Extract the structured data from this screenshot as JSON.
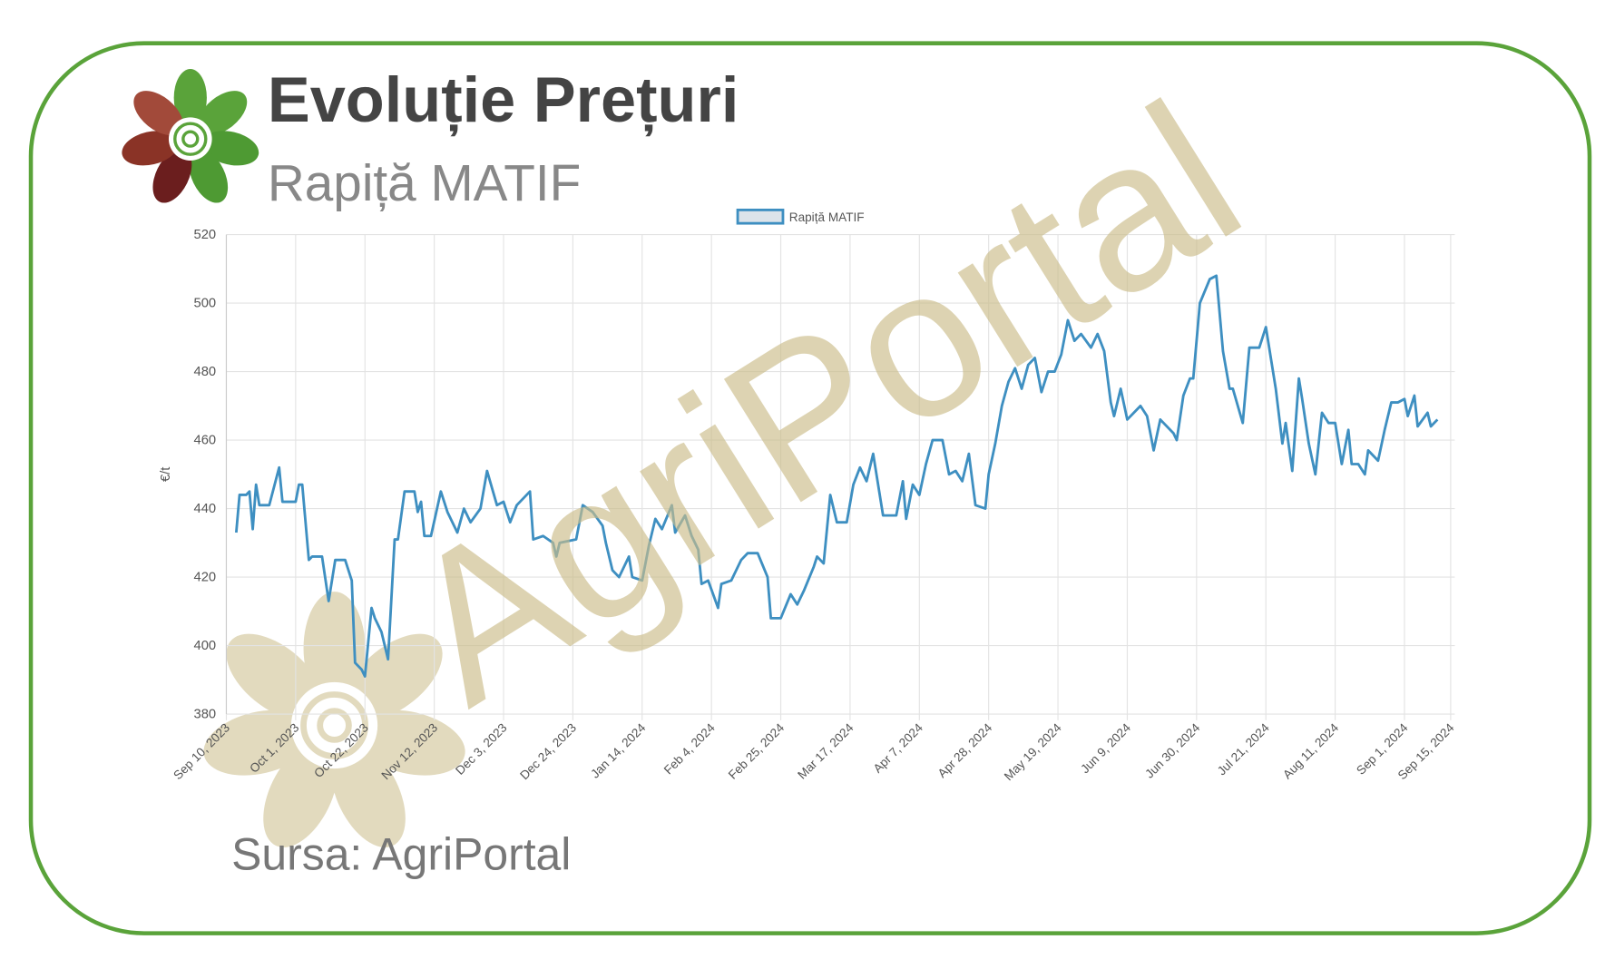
{
  "chart_data": {
    "type": "line",
    "title": "Evoluție Prețuri",
    "subtitle": "Rapiță MATIF",
    "source": "Sursa: AgriPortal",
    "watermark": "AgriPortal",
    "y_label": "€/t",
    "x": [
      "2023-09-13",
      "2023-09-14",
      "2023-09-16",
      "2023-09-17",
      "2023-09-18",
      "2023-09-19",
      "2023-09-20",
      "2023-09-23",
      "2023-09-26",
      "2023-09-27",
      "2023-10-01",
      "2023-10-02",
      "2023-10-03",
      "2023-10-05",
      "2023-10-06",
      "2023-10-09",
      "2023-10-11",
      "2023-10-12",
      "2023-10-13",
      "2023-10-16",
      "2023-10-18",
      "2023-10-19",
      "2023-10-21",
      "2023-10-22",
      "2023-10-24",
      "2023-10-25",
      "2023-10-27",
      "2023-10-29",
      "2023-10-31",
      "2023-11-01",
      "2023-11-03",
      "2023-11-06",
      "2023-11-07",
      "2023-11-08",
      "2023-11-09",
      "2023-11-11",
      "2023-11-14",
      "2023-11-16",
      "2023-11-19",
      "2023-11-21",
      "2023-11-23",
      "2023-11-26",
      "2023-11-28",
      "2023-12-01",
      "2023-12-03",
      "2023-12-05",
      "2023-12-07",
      "2023-12-11",
      "2023-12-12",
      "2023-12-15",
      "2023-12-18",
      "2023-12-19",
      "2023-12-20",
      "2023-12-25",
      "2023-12-27",
      "2023-12-30",
      "2024-01-02",
      "2024-01-03",
      "2024-01-05",
      "2024-01-07",
      "2024-01-10",
      "2024-01-11",
      "2024-01-14",
      "2024-01-16",
      "2024-01-18",
      "2024-01-20",
      "2024-01-23",
      "2024-01-24",
      "2024-01-27",
      "2024-01-29",
      "2024-01-31",
      "2024-02-01",
      "2024-02-03",
      "2024-02-06",
      "2024-02-07",
      "2024-02-10",
      "2024-02-13",
      "2024-02-15",
      "2024-02-18",
      "2024-02-21",
      "2024-02-22",
      "2024-02-25",
      "2024-02-28",
      "2024-03-01",
      "2024-03-03",
      "2024-03-06",
      "2024-03-07",
      "2024-03-09",
      "2024-03-11",
      "2024-03-13",
      "2024-03-16",
      "2024-03-18",
      "2024-03-20",
      "2024-03-22",
      "2024-03-24",
      "2024-03-27",
      "2024-03-31",
      "2024-04-02",
      "2024-04-03",
      "2024-04-05",
      "2024-04-07",
      "2024-04-09",
      "2024-04-11",
      "2024-04-14",
      "2024-04-16",
      "2024-04-18",
      "2024-04-20",
      "2024-04-22",
      "2024-04-24",
      "2024-04-27",
      "2024-04-28",
      "2024-04-30",
      "2024-05-02",
      "2024-05-04",
      "2024-05-06",
      "2024-05-08",
      "2024-05-10",
      "2024-05-12",
      "2024-05-14",
      "2024-05-16",
      "2024-05-18",
      "2024-05-20",
      "2024-05-22",
      "2024-05-24",
      "2024-05-26",
      "2024-05-29",
      "2024-05-31",
      "2024-06-02",
      "2024-06-04",
      "2024-06-05",
      "2024-06-07",
      "2024-06-09",
      "2024-06-11",
      "2024-06-13",
      "2024-06-15",
      "2024-06-17",
      "2024-06-19",
      "2024-06-23",
      "2024-06-24",
      "2024-06-26",
      "2024-06-28",
      "2024-06-29",
      "2024-07-01",
      "2024-07-04",
      "2024-07-06",
      "2024-07-08",
      "2024-07-10",
      "2024-07-11",
      "2024-07-14",
      "2024-07-16",
      "2024-07-19",
      "2024-07-21",
      "2024-07-24",
      "2024-07-26",
      "2024-07-27",
      "2024-07-29",
      "2024-07-31",
      "2024-08-01",
      "2024-08-03",
      "2024-08-05",
      "2024-08-07",
      "2024-08-09",
      "2024-08-11",
      "2024-08-13",
      "2024-08-15",
      "2024-08-16",
      "2024-08-18",
      "2024-08-20",
      "2024-08-21",
      "2024-08-24",
      "2024-08-26",
      "2024-08-28",
      "2024-08-30",
      "2024-09-01",
      "2024-09-02",
      "2024-09-04",
      "2024-09-05",
      "2024-09-08",
      "2024-09-09",
      "2024-09-11"
    ],
    "series": [
      {
        "name": "Rapiță MATIF",
        "color": "#3e8fc1",
        "values": [
          433,
          444,
          444,
          445,
          434,
          447,
          441,
          441,
          452,
          442,
          442,
          447,
          447,
          425,
          426,
          426,
          413,
          419,
          425,
          425,
          419,
          395,
          393,
          391,
          411,
          408,
          404,
          396,
          431,
          431,
          445,
          445,
          439,
          442,
          432,
          432,
          445,
          439,
          433,
          440,
          436,
          440,
          451,
          441,
          442,
          436,
          441,
          445,
          431,
          432,
          430,
          426,
          430,
          431,
          441,
          439,
          435,
          430,
          422,
          420,
          426,
          420,
          419,
          429,
          437,
          434,
          441,
          433,
          438,
          432,
          428,
          418,
          419,
          411,
          418,
          419,
          425,
          427,
          427,
          420,
          408,
          408,
          415,
          412,
          416,
          423,
          426,
          424,
          444,
          436,
          436,
          447,
          452,
          448,
          456,
          438,
          438,
          448,
          437,
          447,
          444,
          453,
          460,
          460,
          450,
          451,
          448,
          456,
          441,
          440,
          450,
          459,
          470,
          477,
          481,
          475,
          482,
          484,
          474,
          480,
          480,
          485,
          495,
          489,
          491,
          487,
          491,
          486,
          471,
          467,
          475,
          466,
          468,
          470,
          467,
          457,
          466,
          462,
          460,
          473,
          478,
          478,
          500,
          507,
          508,
          486,
          475,
          475,
          465,
          487,
          487,
          493,
          475,
          459,
          465,
          451,
          478,
          472,
          459,
          450,
          468,
          465,
          465,
          453,
          463,
          453,
          453,
          450,
          457,
          454,
          463,
          471,
          471,
          472,
          467,
          473,
          464,
          468,
          464,
          466
        ]
      }
    ],
    "xlim": [
      "2023-09-10",
      "2024-09-15"
    ],
    "xticks": [
      {
        "value": "2023-09-10",
        "label": "Sep 10, 2023"
      },
      {
        "value": "2023-10-01",
        "label": "Oct 1, 2023"
      },
      {
        "value": "2023-10-22",
        "label": "Oct 22, 2023"
      },
      {
        "value": "2023-11-12",
        "label": "Nov 12, 2023"
      },
      {
        "value": "2023-12-03",
        "label": "Dec 3, 2023"
      },
      {
        "value": "2023-12-24",
        "label": "Dec 24, 2023"
      },
      {
        "value": "2024-01-14",
        "label": "Jan 14, 2024"
      },
      {
        "value": "2024-02-04",
        "label": "Feb 4, 2024"
      },
      {
        "value": "2024-02-25",
        "label": "Feb 25, 2024"
      },
      {
        "value": "2024-03-17",
        "label": "Mar 17, 2024"
      },
      {
        "value": "2024-04-07",
        "label": "Apr 7, 2024"
      },
      {
        "value": "2024-04-28",
        "label": "Apr 28, 2024"
      },
      {
        "value": "2024-05-19",
        "label": "May 19, 2024"
      },
      {
        "value": "2024-06-09",
        "label": "Jun 9, 2024"
      },
      {
        "value": "2024-06-30",
        "label": "Jun 30, 2024"
      },
      {
        "value": "2024-07-21",
        "label": "Jul 21, 2024"
      },
      {
        "value": "2024-08-11",
        "label": "Aug 11, 2024"
      },
      {
        "value": "2024-09-01",
        "label": "Sep 1, 2024"
      },
      {
        "value": "2024-09-15",
        "label": "Sep 15, 2024"
      }
    ],
    "ylim": [
      380,
      520
    ],
    "yticks": [
      380,
      400,
      420,
      440,
      460,
      480,
      500,
      520
    ],
    "grid": true,
    "legend": "top"
  }
}
